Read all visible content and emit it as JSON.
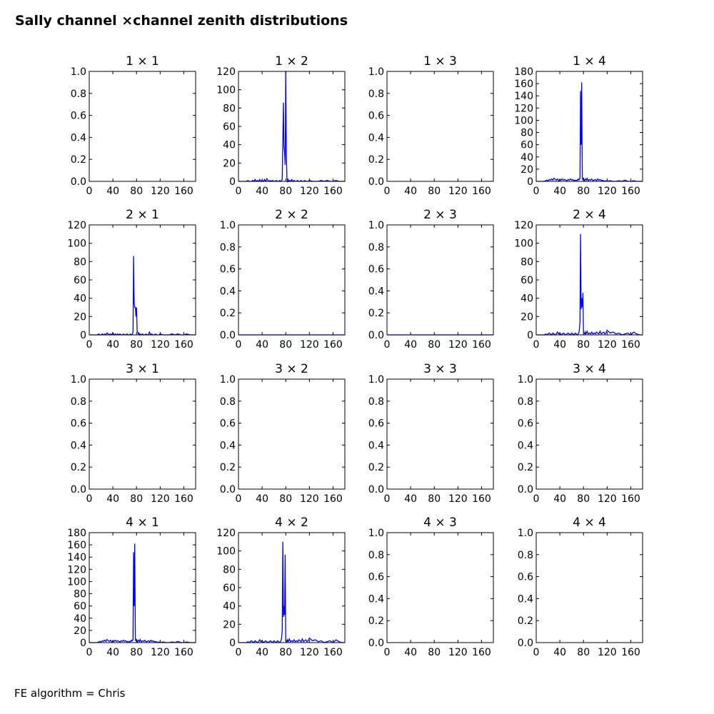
{
  "figure": {
    "title": "Sally channel ×channel zenith distributions",
    "footer": "FE algorithm = Chris"
  },
  "colors": {
    "line": "#0000ff",
    "axis": "#000000",
    "background": "#ffffff"
  },
  "chart_data": [
    {
      "type": "line",
      "title": "1 × 1",
      "xlim": [
        0,
        180
      ],
      "ylim": [
        0,
        1
      ],
      "xticks": [
        0,
        40,
        80,
        120,
        160
      ],
      "yticks": [
        0.0,
        0.2,
        0.4,
        0.6,
        0.8,
        1.0
      ],
      "x": [],
      "y": []
    },
    {
      "type": "line",
      "title": "1 × 2",
      "xlim": [
        0,
        180
      ],
      "ylim": [
        0,
        120
      ],
      "xticks": [
        0,
        40,
        80,
        120,
        160
      ],
      "yticks": [
        0,
        20,
        40,
        60,
        80,
        100,
        120
      ],
      "x": [
        0,
        10,
        14,
        16,
        18,
        20,
        22,
        24,
        26,
        28,
        30,
        32,
        34,
        36,
        38,
        40,
        42,
        44,
        46,
        48,
        50,
        52,
        54,
        56,
        58,
        60,
        62,
        64,
        66,
        68,
        70,
        71,
        72,
        73,
        74,
        75,
        76,
        77,
        78,
        79,
        80,
        81,
        82,
        83,
        84,
        85,
        86,
        88,
        90,
        92,
        94,
        96,
        98,
        100,
        102,
        104,
        106,
        108,
        110,
        112,
        114,
        116,
        118,
        120,
        125,
        130,
        135,
        140,
        145,
        150,
        155,
        160,
        165,
        170,
        175,
        180
      ],
      "y": [
        0,
        0,
        0,
        1,
        0,
        0,
        0,
        1,
        0,
        2,
        0,
        1,
        0,
        2,
        0,
        1,
        0,
        2,
        0,
        3,
        1,
        0,
        1,
        0,
        1,
        0,
        0,
        1,
        0,
        0,
        1,
        0,
        0,
        1,
        2,
        42,
        86,
        38,
        32,
        18,
        120,
        30,
        3,
        0,
        2,
        0,
        1,
        0,
        2,
        0,
        1,
        0,
        0,
        1,
        0,
        0,
        1,
        0,
        0,
        1,
        0,
        0,
        0,
        1,
        0,
        0,
        0,
        1,
        0,
        1,
        0,
        0,
        1,
        0,
        0,
        0
      ]
    },
    {
      "type": "line",
      "title": "1 × 3",
      "xlim": [
        0,
        180
      ],
      "ylim": [
        0,
        1
      ],
      "xticks": [
        0,
        40,
        80,
        120,
        160
      ],
      "yticks": [
        0.0,
        0.2,
        0.4,
        0.6,
        0.8,
        1.0
      ],
      "x": [],
      "y": []
    },
    {
      "type": "line",
      "title": "1 × 4",
      "xlim": [
        0,
        180
      ],
      "ylim": [
        0,
        180
      ],
      "xticks": [
        0,
        40,
        80,
        120,
        160
      ],
      "yticks": [
        0,
        20,
        40,
        60,
        80,
        100,
        120,
        140,
        160,
        180
      ],
      "x": [
        0,
        10,
        14,
        16,
        18,
        20,
        22,
        24,
        26,
        28,
        30,
        32,
        34,
        36,
        38,
        40,
        42,
        44,
        46,
        48,
        50,
        52,
        54,
        56,
        58,
        60,
        62,
        64,
        66,
        68,
        70,
        71,
        72,
        73,
        74,
        75,
        76,
        77,
        78,
        79,
        80,
        81,
        82,
        83,
        84,
        85,
        86,
        88,
        90,
        92,
        94,
        96,
        98,
        100,
        102,
        104,
        106,
        108,
        110,
        112,
        114,
        116,
        118,
        120,
        125,
        130,
        135,
        140,
        145,
        150,
        155,
        160,
        165,
        170,
        175,
        180
      ],
      "y": [
        0,
        0,
        0,
        1,
        2,
        1,
        3,
        2,
        4,
        2,
        5,
        3,
        2,
        4,
        1,
        3,
        2,
        4,
        2,
        3,
        2,
        1,
        3,
        2,
        4,
        2,
        3,
        1,
        2,
        1,
        3,
        2,
        4,
        3,
        5,
        148,
        60,
        162,
        4,
        3,
        5,
        2,
        1,
        4,
        3,
        2,
        5,
        1,
        3,
        2,
        4,
        1,
        2,
        3,
        1,
        4,
        2,
        3,
        1,
        2,
        1,
        0,
        1,
        0,
        1,
        0,
        0,
        1,
        0,
        2,
        0,
        0,
        1,
        0,
        0,
        0
      ]
    },
    {
      "type": "line",
      "title": "2 × 1",
      "xlim": [
        0,
        180
      ],
      "ylim": [
        0,
        120
      ],
      "xticks": [
        0,
        40,
        80,
        120,
        160
      ],
      "yticks": [
        0,
        20,
        40,
        60,
        80,
        100,
        120
      ],
      "x": [
        0,
        10,
        14,
        16,
        18,
        20,
        22,
        24,
        26,
        28,
        30,
        32,
        34,
        36,
        38,
        40,
        42,
        44,
        46,
        48,
        50,
        52,
        54,
        56,
        58,
        60,
        62,
        64,
        66,
        68,
        70,
        71,
        72,
        73,
        74,
        75,
        76,
        77,
        78,
        79,
        80,
        81,
        82,
        83,
        84,
        85,
        86,
        88,
        90,
        92,
        94,
        96,
        98,
        100,
        102,
        104,
        106,
        108,
        110,
        112,
        114,
        116,
        118,
        120,
        125,
        130,
        135,
        140,
        145,
        150,
        155,
        160,
        165,
        170,
        175,
        180
      ],
      "y": [
        0,
        0,
        0,
        1,
        0,
        0,
        1,
        0,
        1,
        0,
        2,
        1,
        0,
        1,
        0,
        2,
        0,
        1,
        0,
        1,
        0,
        1,
        0,
        0,
        1,
        0,
        0,
        1,
        0,
        0,
        1,
        0,
        0,
        1,
        3,
        86,
        35,
        30,
        30,
        20,
        30,
        4,
        3,
        1,
        2,
        0,
        1,
        0,
        1,
        0,
        0,
        1,
        0,
        0,
        3,
        0,
        1,
        0,
        0,
        1,
        0,
        0,
        0,
        1,
        0,
        0,
        0,
        1,
        0,
        1,
        0,
        0,
        1,
        0,
        0,
        0
      ]
    },
    {
      "type": "line",
      "title": "2 × 2",
      "xlim": [
        0,
        180
      ],
      "ylim": [
        0,
        1
      ],
      "xticks": [
        0,
        40,
        80,
        120,
        160
      ],
      "yticks": [
        0.0,
        0.2,
        0.4,
        0.6,
        0.8,
        1.0
      ],
      "x": [
        0,
        180
      ],
      "y": [
        0,
        0
      ]
    },
    {
      "type": "line",
      "title": "2 × 3",
      "xlim": [
        0,
        180
      ],
      "ylim": [
        0,
        1
      ],
      "xticks": [
        0,
        40,
        80,
        120,
        160
      ],
      "yticks": [
        0.0,
        0.2,
        0.4,
        0.6,
        0.8,
        1.0
      ],
      "x": [
        0,
        180
      ],
      "y": [
        0,
        0
      ]
    },
    {
      "type": "line",
      "title": "2 × 4",
      "xlim": [
        0,
        180
      ],
      "ylim": [
        0,
        120
      ],
      "xticks": [
        0,
        40,
        80,
        120,
        160
      ],
      "yticks": [
        0,
        20,
        40,
        60,
        80,
        100,
        120
      ],
      "x": [
        0,
        10,
        14,
        16,
        18,
        20,
        22,
        24,
        26,
        28,
        30,
        32,
        34,
        36,
        38,
        40,
        42,
        44,
        46,
        48,
        50,
        52,
        54,
        56,
        58,
        60,
        62,
        64,
        66,
        68,
        70,
        71,
        72,
        73,
        74,
        75,
        76,
        77,
        78,
        79,
        80,
        81,
        82,
        83,
        84,
        85,
        86,
        88,
        90,
        92,
        94,
        96,
        98,
        100,
        102,
        104,
        106,
        108,
        110,
        112,
        114,
        116,
        118,
        120,
        125,
        130,
        135,
        140,
        145,
        150,
        155,
        160,
        165,
        170,
        175,
        180
      ],
      "y": [
        0,
        0,
        0,
        1,
        0,
        1,
        2,
        1,
        0,
        2,
        1,
        0,
        1,
        3,
        1,
        2,
        0,
        1,
        2,
        1,
        0,
        1,
        2,
        1,
        0,
        2,
        1,
        0,
        2,
        1,
        0,
        1,
        2,
        5,
        14,
        110,
        28,
        40,
        30,
        46,
        3,
        2,
        1,
        3,
        1,
        2,
        4,
        1,
        2,
        1,
        3,
        1,
        2,
        1,
        3,
        2,
        1,
        4,
        1,
        2,
        3,
        1,
        2,
        5,
        2,
        3,
        1,
        2,
        0,
        1,
        2,
        0,
        3,
        1,
        0,
        0
      ]
    },
    {
      "type": "line",
      "title": "3 × 1",
      "xlim": [
        0,
        180
      ],
      "ylim": [
        0,
        1
      ],
      "xticks": [
        0,
        40,
        80,
        120,
        160
      ],
      "yticks": [
        0.0,
        0.2,
        0.4,
        0.6,
        0.8,
        1.0
      ],
      "x": [],
      "y": []
    },
    {
      "type": "line",
      "title": "3 × 2",
      "xlim": [
        0,
        180
      ],
      "ylim": [
        0,
        1
      ],
      "xticks": [
        0,
        40,
        80,
        120,
        160
      ],
      "yticks": [
        0.0,
        0.2,
        0.4,
        0.6,
        0.8,
        1.0
      ],
      "x": [],
      "y": []
    },
    {
      "type": "line",
      "title": "3 × 3",
      "xlim": [
        0,
        180
      ],
      "ylim": [
        0,
        1
      ],
      "xticks": [
        0,
        40,
        80,
        120,
        160
      ],
      "yticks": [
        0.0,
        0.2,
        0.4,
        0.6,
        0.8,
        1.0
      ],
      "x": [],
      "y": []
    },
    {
      "type": "line",
      "title": "3 × 4",
      "xlim": [
        0,
        180
      ],
      "ylim": [
        0,
        1
      ],
      "xticks": [
        0,
        40,
        80,
        120,
        160
      ],
      "yticks": [
        0.0,
        0.2,
        0.4,
        0.6,
        0.8,
        1.0
      ],
      "x": [],
      "y": []
    },
    {
      "type": "line",
      "title": "4 × 1",
      "xlim": [
        0,
        180
      ],
      "ylim": [
        0,
        180
      ],
      "xticks": [
        0,
        40,
        80,
        120,
        160
      ],
      "yticks": [
        0,
        20,
        40,
        60,
        80,
        100,
        120,
        140,
        160,
        180
      ],
      "x": [
        0,
        10,
        14,
        16,
        18,
        20,
        22,
        24,
        26,
        28,
        30,
        32,
        34,
        36,
        38,
        40,
        42,
        44,
        46,
        48,
        50,
        52,
        54,
        56,
        58,
        60,
        62,
        64,
        66,
        68,
        70,
        71,
        72,
        73,
        74,
        75,
        76,
        77,
        78,
        79,
        80,
        81,
        82,
        83,
        84,
        85,
        86,
        88,
        90,
        92,
        94,
        96,
        98,
        100,
        102,
        104,
        106,
        108,
        110,
        112,
        114,
        116,
        118,
        120,
        125,
        130,
        135,
        140,
        145,
        150,
        155,
        160,
        165,
        170,
        175,
        180
      ],
      "y": [
        0,
        0,
        0,
        1,
        2,
        1,
        3,
        2,
        4,
        2,
        5,
        3,
        2,
        4,
        1,
        3,
        2,
        4,
        2,
        3,
        2,
        1,
        3,
        2,
        4,
        2,
        3,
        1,
        2,
        1,
        3,
        2,
        4,
        3,
        5,
        148,
        60,
        162,
        4,
        3,
        5,
        2,
        1,
        4,
        3,
        2,
        5,
        1,
        3,
        2,
        4,
        1,
        2,
        3,
        1,
        4,
        2,
        3,
        1,
        2,
        1,
        0,
        1,
        0,
        1,
        0,
        0,
        1,
        0,
        2,
        0,
        0,
        1,
        0,
        0,
        0
      ]
    },
    {
      "type": "line",
      "title": "4 × 2",
      "xlim": [
        0,
        180
      ],
      "ylim": [
        0,
        120
      ],
      "xticks": [
        0,
        40,
        80,
        120,
        160
      ],
      "yticks": [
        0,
        20,
        40,
        60,
        80,
        100,
        120
      ],
      "x": [
        0,
        10,
        14,
        16,
        18,
        20,
        22,
        24,
        26,
        28,
        30,
        32,
        34,
        36,
        38,
        40,
        42,
        44,
        46,
        48,
        50,
        52,
        54,
        56,
        58,
        60,
        62,
        64,
        66,
        68,
        70,
        71,
        72,
        73,
        74,
        75,
        76,
        77,
        78,
        79,
        80,
        81,
        82,
        83,
        84,
        85,
        86,
        88,
        90,
        92,
        94,
        96,
        98,
        100,
        102,
        104,
        106,
        108,
        110,
        112,
        114,
        116,
        118,
        120,
        125,
        130,
        135,
        140,
        145,
        150,
        155,
        160,
        165,
        170,
        175,
        180
      ],
      "y": [
        0,
        0,
        0,
        1,
        0,
        1,
        2,
        1,
        0,
        2,
        1,
        0,
        1,
        3,
        1,
        2,
        0,
        1,
        2,
        1,
        0,
        1,
        2,
        1,
        0,
        2,
        1,
        0,
        2,
        1,
        0,
        1,
        2,
        5,
        14,
        110,
        28,
        40,
        30,
        96,
        3,
        2,
        1,
        3,
        1,
        2,
        4,
        1,
        2,
        1,
        3,
        1,
        2,
        1,
        3,
        2,
        1,
        4,
        1,
        2,
        3,
        1,
        2,
        5,
        2,
        3,
        1,
        2,
        0,
        1,
        2,
        0,
        3,
        1,
        0,
        0
      ]
    },
    {
      "type": "line",
      "title": "4 × 3",
      "xlim": [
        0,
        180
      ],
      "ylim": [
        0,
        1
      ],
      "xticks": [
        0,
        40,
        80,
        120,
        160
      ],
      "yticks": [
        0.0,
        0.2,
        0.4,
        0.6,
        0.8,
        1.0
      ],
      "x": [],
      "y": []
    },
    {
      "type": "line",
      "title": "4 × 4",
      "xlim": [
        0,
        180
      ],
      "ylim": [
        0,
        1
      ],
      "xticks": [
        0,
        40,
        80,
        120,
        160
      ],
      "yticks": [
        0.0,
        0.2,
        0.4,
        0.6,
        0.8,
        1.0
      ],
      "x": [],
      "y": []
    }
  ]
}
